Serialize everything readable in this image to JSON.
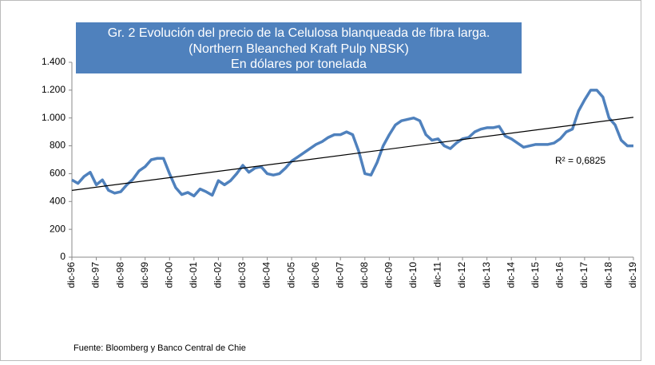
{
  "chart_data": {
    "type": "line",
    "title": [
      "Gr. 2  Evolución del precio de la Celulosa blanqueada de fibra larga.",
      "(Northern  Bleanched Kraft Pulp NBSK)",
      "En dólares por tonelada"
    ],
    "source": "Fuente: Bloomberg y Banco Central de Chie",
    "categories": [
      "dic-96",
      null,
      null,
      null,
      "dic-97",
      null,
      null,
      null,
      "dic-98",
      null,
      null,
      null,
      "dic-99",
      null,
      null,
      null,
      "dic-00",
      null,
      null,
      null,
      "dic-01",
      null,
      null,
      null,
      "dic-02",
      null,
      null,
      null,
      "dic-03",
      null,
      null,
      null,
      "dic-04",
      null,
      null,
      null,
      "dic-05",
      null,
      null,
      null,
      "dic-06",
      null,
      null,
      null,
      "dic-07",
      null,
      null,
      null,
      "dic-08",
      null,
      null,
      null,
      "dic-09",
      null,
      null,
      null,
      "dic-10",
      null,
      null,
      null,
      "dic-11",
      null,
      null,
      null,
      "dic-12",
      null,
      null,
      null,
      "dic-13",
      null,
      null,
      null,
      "dic-14",
      null,
      null,
      null,
      "dic-15",
      null,
      null,
      null,
      "dic-16",
      null,
      null,
      null,
      "dic-17",
      null,
      null,
      null,
      "dic-18",
      null,
      null,
      null,
      "dic-19"
    ],
    "values": [
      555,
      530,
      580,
      610,
      520,
      555,
      480,
      460,
      470,
      520,
      560,
      620,
      650,
      700,
      710,
      710,
      600,
      500,
      450,
      465,
      440,
      490,
      470,
      445,
      550,
      520,
      550,
      600,
      660,
      610,
      640,
      650,
      600,
      590,
      600,
      640,
      690,
      720,
      750,
      780,
      810,
      830,
      860,
      880,
      880,
      900,
      880,
      760,
      600,
      590,
      680,
      800,
      880,
      950,
      980,
      990,
      1000,
      980,
      880,
      840,
      850,
      800,
      780,
      820,
      850,
      860,
      900,
      920,
      930,
      930,
      940,
      870,
      850,
      820,
      790,
      800,
      810,
      810,
      810,
      820,
      850,
      900,
      920,
      1050,
      1130,
      1200,
      1200,
      1150,
      1000,
      950,
      840,
      800,
      800
    ],
    "color": "#4f81bd",
    "trend": {
      "start": 480,
      "end": 1005,
      "label": "R² = 0,6825",
      "color": "#000000"
    },
    "ylim": [
      0,
      1400
    ],
    "yticks": [
      0,
      200,
      400,
      600,
      {
        "value": 800,
        "label": "800"
      },
      {
        "value": 1000,
        "label": "1.000"
      },
      {
        "value": 1200,
        "label": "1.200"
      },
      {
        "value": 1400,
        "label": "1.400"
      }
    ]
  }
}
